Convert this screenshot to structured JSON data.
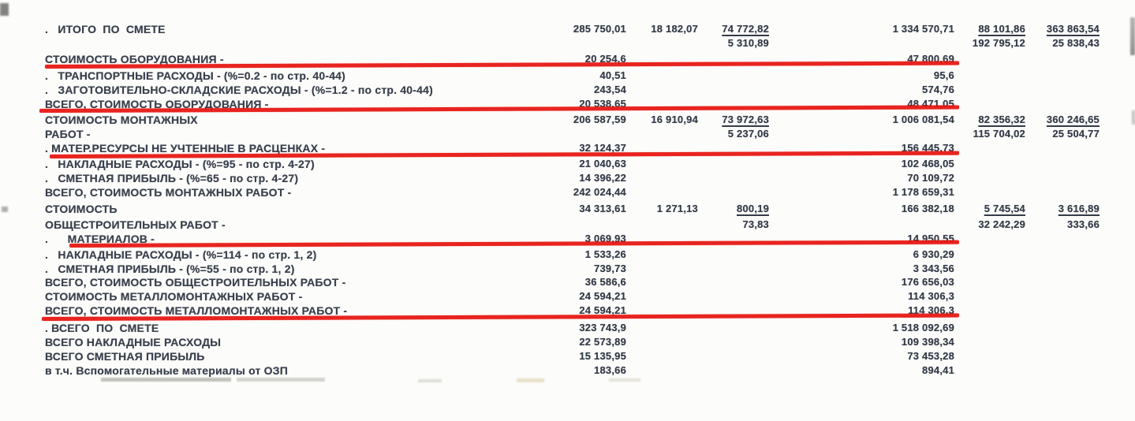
{
  "document": {
    "type": "scanned-cost-estimate-summary",
    "language": "ru",
    "text_color": "#39404d",
    "red_annotation_color": "#e71410"
  },
  "table": {
    "rows": [
      {
        "label": ".   ИТОГО  ПО  СМЕТЕ",
        "c1": "285 750,01",
        "c2": "18 182,07",
        "c3": "74 772,82",
        "c4": "1 334 570,71",
        "c5": "88 101,86",
        "c6": "363 863,54",
        "u": [
          "c3",
          "c5",
          "c6"
        ]
      },
      {
        "label": "",
        "c3": "5 310,89",
        "c5": "192 795,12",
        "c6": "25 838,43"
      },
      {
        "label": "СТОИМОСТЬ ОБОРУДОВАНИЯ -",
        "c1": "20 254,6",
        "c4": "47 800,69",
        "redline": true
      },
      {
        "label": ".   ТРАНСПОРТНЫЕ РАСХОДЫ - (%=0.2 - по стр. 40-44)",
        "c1": "40,51",
        "c4": "95,6"
      },
      {
        "label": ".   ЗАГОТОВИТЕЛЬНО-СКЛАДСКИЕ РАСХОДЫ - (%=1.2 - по стр. 40-44)",
        "c1": "243,54",
        "c4": "574,76"
      },
      {
        "label": "ВСЕГО, СТОИМОСТЬ ОБОРУДОВАНИЯ -",
        "c1": "20 538,65",
        "c4": "48 471,05",
        "redline": true
      },
      {
        "label": "СТОИМОСТЬ МОНТАЖНЫХ",
        "c1": "206 587,59",
        "c2": "16 910,94",
        "c3": "73 972,63",
        "c4": "1 006 081,54",
        "c5": "82 356,32",
        "c6": "360 246,65",
        "u": [
          "c3",
          "c5",
          "c6"
        ]
      },
      {
        "label": "РАБОТ -",
        "c3": "5 237,06",
        "c5": "115 704,02",
        "c6": "25 504,77"
      },
      {
        "label": ". МАТЕР.РЕСУРСЫ НЕ УЧТЕННЫЕ В РАСЦЕНКАХ -",
        "c1": "32 124,37",
        "c4": "156 445,73",
        "redline": true
      },
      {
        "label": ".   НАКЛАДНЫЕ РАСХОДЫ - (%=95 - по стр. 4-27)",
        "c1": "21 040,63",
        "c4": "102 468,05"
      },
      {
        "label": ".   СМЕТНАЯ ПРИБЫЛЬ - (%=65 - по стр. 4-27)",
        "c1": "14 396,22",
        "c4": "70 109,72"
      },
      {
        "label": "ВСЕГО, СТОИМОСТЬ МОНТАЖНЫХ РАБОТ -",
        "c1": "242 024,44",
        "c4": "1 178 659,31"
      },
      {
        "label": "СТОИМОСТЬ",
        "c1": "34 313,61",
        "c2": "1 271,13",
        "c3": "800,19",
        "c4": "166 382,18",
        "c5": "5 745,54",
        "c6": "3 616,89",
        "u": [
          "c3",
          "c5",
          "c6"
        ]
      },
      {
        "label": "ОБЩЕСТРОИТЕЛЬНЫХ РАБОТ -",
        "c3": "73,83",
        "c5": "32 242,29",
        "c6": "333,66"
      },
      {
        "label": ".      МАТЕРИАЛОВ -",
        "c1": "3 069,93",
        "c4": "14 950,55",
        "redline": true
      },
      {
        "label": ".   НАКЛАДНЫЕ РАСХОДЫ - (%=114 - по стр. 1, 2)",
        "c1": "1 533,26",
        "c4": "6 930,29"
      },
      {
        "label": ".   СМЕТНАЯ ПРИБЫЛЬ - (%=55 - по стр. 1, 2)",
        "c1": "739,73",
        "c4": "3 343,56"
      },
      {
        "label": "ВСЕГО, СТОИМОСТЬ ОБЩЕСТРОИТЕЛЬНЫХ РАБОТ -",
        "c1": "36 586,6",
        "c4": "176 656,03"
      },
      {
        "label": "СТОИМОСТЬ МЕТАЛЛОМОНТАЖНЫХ РАБОТ -",
        "c1": "24 594,21",
        "c4": "114 306,3"
      },
      {
        "label": "ВСЕГО, СТОИМОСТЬ МЕТАЛЛОМОНТАЖНЫХ РАБОТ -",
        "c1": "24 594,21",
        "c4": "114 306,3",
        "redline": true
      },
      {
        "label": ". ВСЕГО  ПО  СМЕТЕ",
        "c1": "323 743,9",
        "c4": "1 518 092,69"
      },
      {
        "label": "ВСЕГО НАКЛАДНЫЕ РАСХОДЫ",
        "c1": "22 573,89",
        "c4": "109 398,34"
      },
      {
        "label": "ВСЕГО СМЕТНАЯ ПРИБЫЛЬ",
        "c1": "15 135,95",
        "c4": "73 453,28"
      },
      {
        "label": "в т.ч. Вспомогательные материалы от ОЗП",
        "c1": "183,66",
        "c4": "894,41"
      }
    ]
  }
}
